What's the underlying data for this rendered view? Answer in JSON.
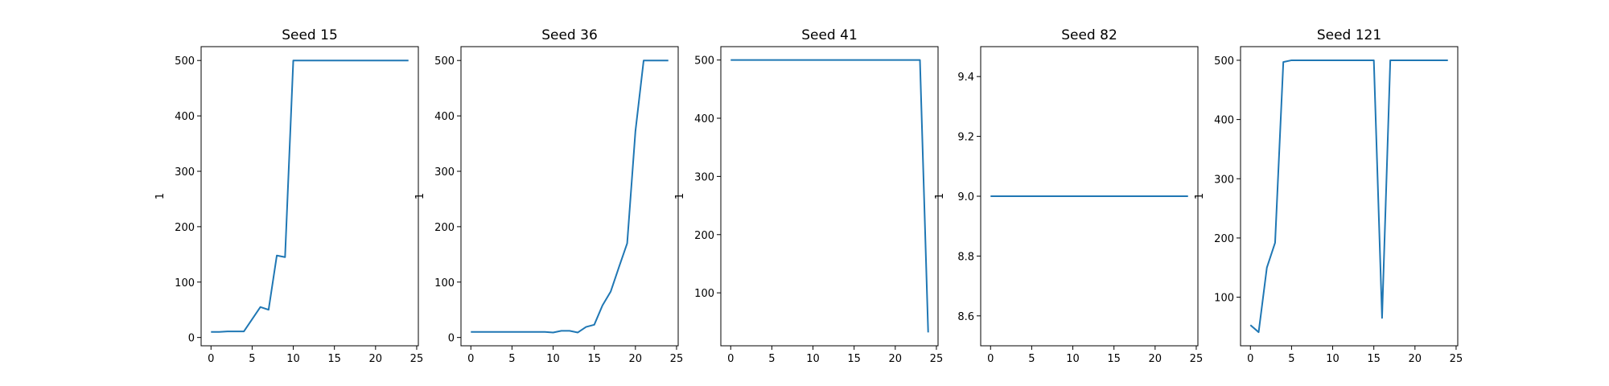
{
  "chart_data": [
    {
      "type": "line",
      "title": "Seed 15",
      "xlabel": "",
      "ylabel": "1",
      "xlim": [
        -1.2,
        25.2
      ],
      "ylim": [
        -15,
        525
      ],
      "xticks": [
        0,
        5,
        10,
        15,
        20,
        25
      ],
      "yticks": [
        0,
        100,
        200,
        300,
        400,
        500
      ],
      "ytick_labels": [
        "0",
        "100",
        "200",
        "300",
        "400",
        "500"
      ],
      "color": "#1f77b4",
      "x": [
        0,
        1,
        2,
        3,
        4,
        5,
        6,
        7,
        8,
        9,
        10,
        11,
        12,
        13,
        14,
        15,
        16,
        17,
        18,
        19,
        20,
        21,
        22,
        23,
        24
      ],
      "y": [
        10,
        10,
        11,
        11,
        11,
        33,
        55,
        50,
        148,
        145,
        500,
        500,
        500,
        500,
        500,
        500,
        500,
        500,
        500,
        500,
        500,
        500,
        500,
        500,
        500
      ]
    },
    {
      "type": "line",
      "title": "Seed 36",
      "xlabel": "",
      "ylabel": "1",
      "xlim": [
        -1.2,
        25.2
      ],
      "ylim": [
        -15,
        525
      ],
      "xticks": [
        0,
        5,
        10,
        15,
        20,
        25
      ],
      "yticks": [
        0,
        100,
        200,
        300,
        400,
        500
      ],
      "ytick_labels": [
        "0",
        "100",
        "200",
        "300",
        "400",
        "500"
      ],
      "color": "#1f77b4",
      "x": [
        0,
        1,
        2,
        3,
        4,
        5,
        6,
        7,
        8,
        9,
        10,
        11,
        12,
        13,
        14,
        15,
        16,
        17,
        18,
        19,
        20,
        21,
        22,
        23,
        24
      ],
      "y": [
        10,
        10,
        10,
        10,
        10,
        10,
        10,
        10,
        10,
        10,
        9,
        12,
        12,
        9,
        19,
        23,
        58,
        83,
        127,
        170,
        372,
        500,
        500,
        500,
        500
      ]
    },
    {
      "type": "line",
      "title": "Seed 41",
      "xlabel": "",
      "ylabel": "1",
      "xlim": [
        -1.2,
        25.2
      ],
      "ylim": [
        9,
        523
      ],
      "xticks": [
        0,
        5,
        10,
        15,
        20,
        25
      ],
      "yticks": [
        100,
        200,
        300,
        400,
        500
      ],
      "ytick_labels": [
        "100",
        "200",
        "300",
        "400",
        "500"
      ],
      "color": "#1f77b4",
      "x": [
        0,
        1,
        2,
        3,
        4,
        5,
        6,
        7,
        8,
        9,
        10,
        11,
        12,
        13,
        14,
        15,
        16,
        17,
        18,
        19,
        20,
        21,
        22,
        23,
        24
      ],
      "y": [
        500,
        500,
        500,
        500,
        500,
        500,
        500,
        500,
        500,
        500,
        500,
        500,
        500,
        500,
        500,
        500,
        500,
        500,
        500,
        500,
        500,
        500,
        500,
        500,
        32
      ]
    },
    {
      "type": "line",
      "title": "Seed 82",
      "xlabel": "",
      "ylabel": "1",
      "xlim": [
        -1.2,
        25.2
      ],
      "ylim": [
        8.5,
        9.5
      ],
      "xticks": [
        0,
        5,
        10,
        15,
        20,
        25
      ],
      "yticks": [
        8.6,
        8.8,
        9.0,
        9.2,
        9.4
      ],
      "ytick_labels": [
        "8.6",
        "8.8",
        "9.0",
        "9.2",
        "9.4"
      ],
      "color": "#1f77b4",
      "x": [
        0,
        1,
        2,
        3,
        4,
        5,
        6,
        7,
        8,
        9,
        10,
        11,
        12,
        13,
        14,
        15,
        16,
        17,
        18,
        19,
        20,
        21,
        22,
        23,
        24
      ],
      "y": [
        9,
        9,
        9,
        9,
        9,
        9,
        9,
        9,
        9,
        9,
        9,
        9,
        9,
        9,
        9,
        9,
        9,
        9,
        9,
        9,
        9,
        9,
        9,
        9,
        9
      ]
    },
    {
      "type": "line",
      "title": "Seed 121",
      "xlabel": "",
      "ylabel": "1",
      "xlim": [
        -1.2,
        25.2
      ],
      "ylim": [
        18,
        523
      ],
      "xticks": [
        0,
        5,
        10,
        15,
        20,
        25
      ],
      "yticks": [
        100,
        200,
        300,
        400,
        500
      ],
      "ytick_labels": [
        "100",
        "200",
        "300",
        "400",
        "500"
      ],
      "color": "#1f77b4",
      "x": [
        0,
        1,
        2,
        3,
        4,
        5,
        6,
        7,
        8,
        9,
        10,
        11,
        12,
        13,
        14,
        15,
        16,
        17,
        18,
        19,
        20,
        21,
        22,
        23,
        24
      ],
      "y": [
        53,
        41,
        150,
        192,
        497,
        500,
        500,
        500,
        500,
        500,
        500,
        500,
        500,
        500,
        500,
        500,
        65,
        500,
        500,
        500,
        500,
        500,
        500,
        500,
        500
      ]
    }
  ]
}
